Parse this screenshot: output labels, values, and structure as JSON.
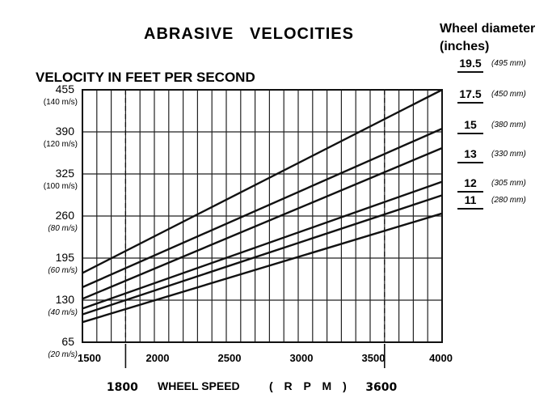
{
  "chart_data": {
    "type": "line",
    "title": "ABRASIVE   VELOCITIES",
    "ylabel": "VELOCITY IN FEET PER SECOND",
    "xlabel": "WHEEL SPEED",
    "xlabel_unit": "( R P M )",
    "xlim": [
      1500,
      4000
    ],
    "ylim": [
      65,
      455
    ],
    "x_ticks": [
      "1500",
      "2000",
      "2500",
      "3000",
      "3500",
      "4000"
    ],
    "x_tick_values": [
      1500,
      2000,
      2500,
      3000,
      3500,
      4000
    ],
    "x_markers": [
      {
        "label": "1800",
        "value": 1800
      },
      {
        "label": "3600",
        "value": 3600
      }
    ],
    "y_ticks": [
      {
        "value": 455,
        "label": "455",
        "unit": "(140 m/s)"
      },
      {
        "value": 390,
        "label": "390",
        "unit": "(120 m/s)"
      },
      {
        "value": 325,
        "label": "325",
        "unit": "(100 m/s)"
      },
      {
        "value": 260,
        "label": "260",
        "unit": "(80 m/s)"
      },
      {
        "value": 195,
        "label": "195",
        "unit": "(60 m/s)"
      },
      {
        "value": 130,
        "label": "130",
        "unit": "(40 m/s)"
      },
      {
        "value": 65,
        "label": "65",
        "unit": "(20 m/s)"
      }
    ],
    "x_grid_step": 100,
    "grid": true,
    "legend_title": "Wheel diameter",
    "legend_subtitle": "(inches)",
    "series": [
      {
        "name": "19.5",
        "mm": "(495 mm)",
        "x": [
          1500,
          4000
        ],
        "y": [
          172,
          455
        ]
      },
      {
        "name": "17.5",
        "mm": "(450 mm)",
        "x": [
          1500,
          4000
        ],
        "y": [
          150,
          395
        ]
      },
      {
        "name": "15",
        "mm": "(380 mm)",
        "x": [
          1500,
          4000
        ],
        "y": [
          132,
          365
        ]
      },
      {
        "name": "13",
        "mm": "(330 mm)",
        "x": [
          1500,
          4000
        ],
        "y": [
          117,
          313
        ]
      },
      {
        "name": "12",
        "mm": "(305 mm)",
        "x": [
          1500,
          4000
        ],
        "y": [
          108,
          292
        ]
      },
      {
        "name": "11",
        "mm": "(280 mm)",
        "x": [
          1500,
          4000
        ],
        "y": [
          96,
          264
        ]
      }
    ]
  }
}
